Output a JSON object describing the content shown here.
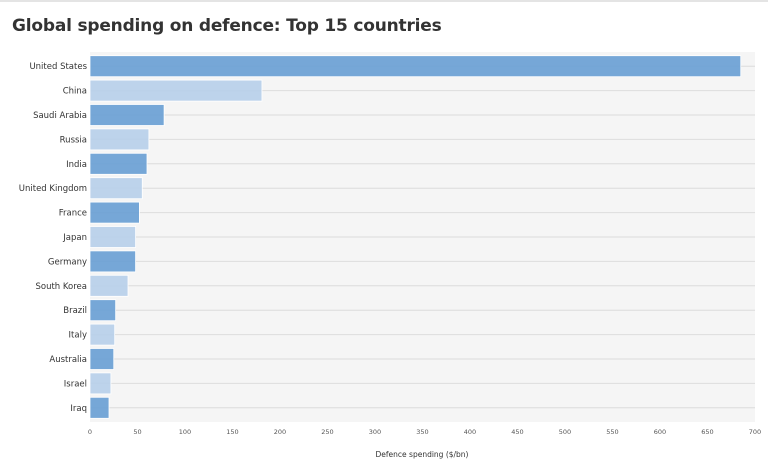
{
  "chart_data": {
    "type": "bar",
    "orientation": "horizontal",
    "title": "Global spending on defence: Top 15 countries",
    "xlabel": "Defence spending ($/bn)",
    "ylabel": "",
    "xlim": [
      0,
      700
    ],
    "xticks": [
      0,
      50,
      100,
      150,
      200,
      250,
      300,
      350,
      400,
      450,
      500,
      550,
      600,
      650,
      700
    ],
    "grid": true,
    "legend": "none",
    "categories": [
      "United States",
      "China",
      "Saudi Arabia",
      "Russia",
      "India",
      "United Kingdom",
      "France",
      "Japan",
      "Germany",
      "South Korea",
      "Brazil",
      "Italy",
      "Australia",
      "Israel",
      "Iraq"
    ],
    "values": [
      685,
      181,
      78,
      62,
      60,
      55,
      52,
      48,
      48,
      40,
      27,
      26,
      25,
      22,
      20
    ],
    "colors": {
      "bar_dark": "#6a9fd4",
      "bar_light": "#b7cfe9",
      "plot_background": "#f5f5f5",
      "gridline": "#dcdcdc"
    }
  }
}
